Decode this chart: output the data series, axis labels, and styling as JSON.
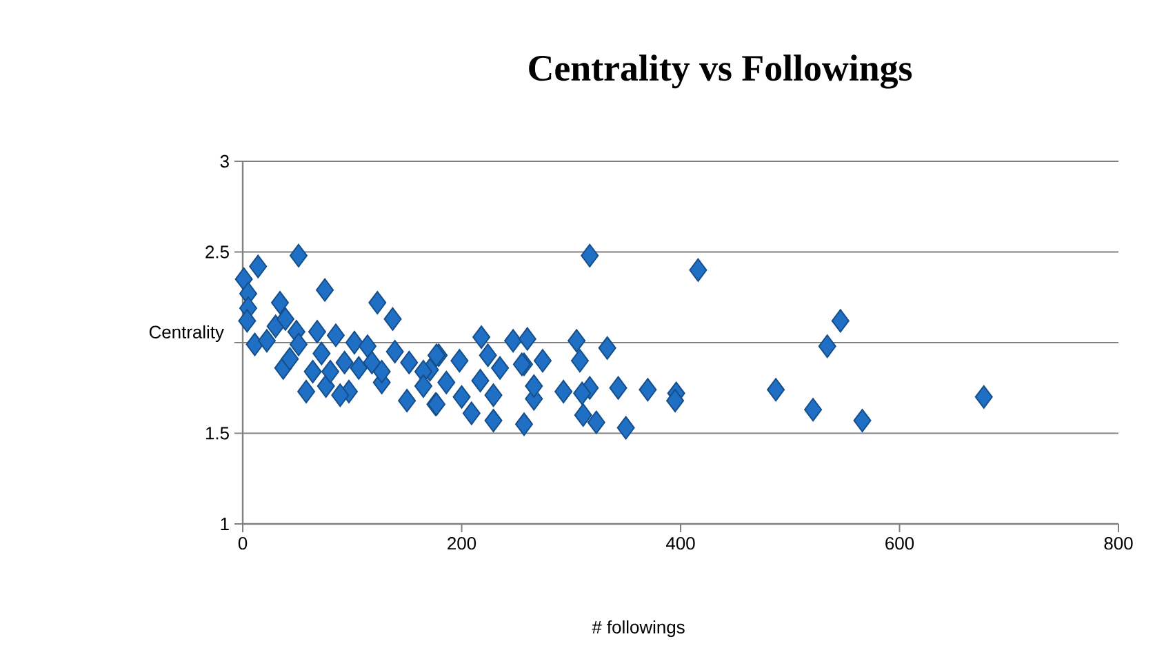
{
  "chart_data": {
    "type": "scatter",
    "title": "Centrality vs Followings",
    "xlabel": "# followings",
    "ylabel": "Centrality",
    "x": [
      51,
      317,
      416,
      546,
      534,
      487,
      521,
      566,
      677,
      396,
      395,
      370,
      350,
      343,
      333,
      305,
      308,
      323,
      311,
      317,
      310,
      293,
      274,
      266,
      257,
      229,
      209,
      176,
      218,
      247,
      260,
      179,
      224,
      257,
      217,
      198,
      171,
      186,
      235,
      255,
      229,
      200,
      266,
      75,
      123,
      137,
      1,
      14,
      5,
      5,
      4,
      11,
      34,
      37,
      58,
      76,
      30,
      49,
      68,
      85,
      102,
      114,
      64,
      93,
      118,
      139,
      152,
      177,
      97,
      127,
      150,
      177,
      22,
      43,
      72,
      106,
      127,
      165,
      80,
      89,
      165,
      51,
      39
    ],
    "values": [
      2.48,
      2.48,
      2.4,
      2.12,
      1.98,
      1.74,
      1.63,
      1.57,
      1.7,
      1.72,
      1.68,
      1.74,
      1.53,
      1.75,
      1.97,
      2.01,
      1.9,
      1.56,
      1.6,
      1.75,
      1.72,
      1.73,
      1.9,
      1.69,
      1.55,
      1.57,
      1.61,
      1.66,
      2.03,
      2.01,
      2.02,
      1.93,
      1.93,
      1.88,
      1.79,
      1.9,
      1.85,
      1.78,
      1.86,
      1.88,
      1.71,
      1.7,
      1.76,
      2.29,
      2.22,
      2.13,
      2.35,
      2.42,
      2.27,
      2.19,
      2.12,
      1.99,
      2.22,
      1.86,
      1.73,
      1.76,
      2.09,
      2.06,
      2.06,
      2.04,
      2.0,
      1.98,
      1.84,
      1.89,
      1.89,
      1.95,
      1.89,
      1.93,
      1.73,
      1.78,
      1.68,
      1.66,
      2.01,
      1.91,
      1.94,
      1.86,
      1.84,
      1.84,
      1.84,
      1.71,
      1.76,
      1.99,
      2.13
    ],
    "color": "#1f6fc5",
    "marker": "diamond",
    "grid": "y",
    "xlim": [
      0,
      800
    ],
    "xticks": [
      0,
      200,
      400,
      600,
      800
    ],
    "ylim": [
      1,
      3
    ],
    "yticks": [
      1,
      1.5,
      {
        "value": 2,
        "label": null
      },
      2.5,
      3
    ]
  }
}
